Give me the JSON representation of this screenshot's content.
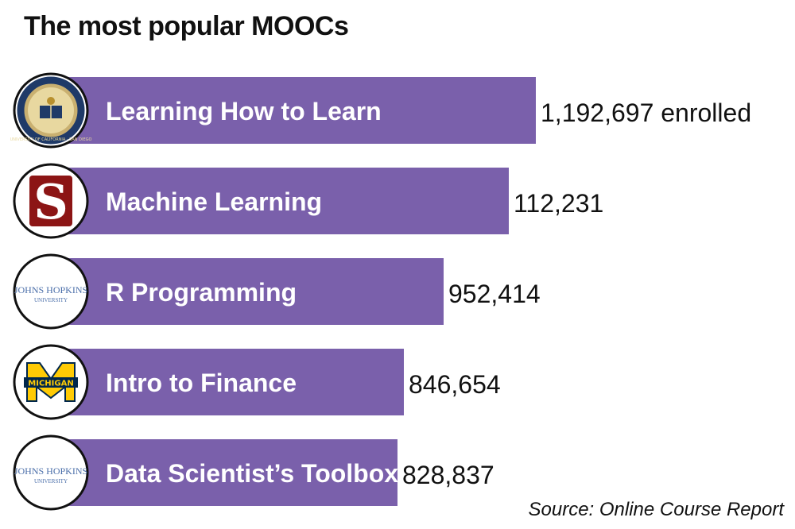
{
  "chart_data": {
    "type": "bar",
    "orientation": "horizontal",
    "title": "The most popular MOOCs",
    "source": "Source: Online Course Report",
    "bar_color": "#7a60ab",
    "categories": [
      "Learning How to Learn",
      "Machine Learning",
      "R Programming",
      "Intro to Finance",
      "Data Scientist’s Toolbox"
    ],
    "values": [
      1192697,
      112231,
      952414,
      846654,
      828837
    ],
    "value_labels": [
      "1,192,697 enrolled",
      "112,231",
      "952,414",
      "846,654",
      "828,837"
    ],
    "logos": [
      "uc-san-diego-seal",
      "stanford-s-logo",
      "johns-hopkins-logo",
      "michigan-m-logo",
      "johns-hopkins-logo"
    ],
    "logo_texts": {
      "ucsd": "UNIVERSITY OF CALIFORNIA · SAN DIEGO",
      "jhu_line1": "JOHNS HOPKINS",
      "jhu_line2": "UNIVERSITY",
      "michigan": "MICHIGAN",
      "stanford": "S"
    }
  }
}
